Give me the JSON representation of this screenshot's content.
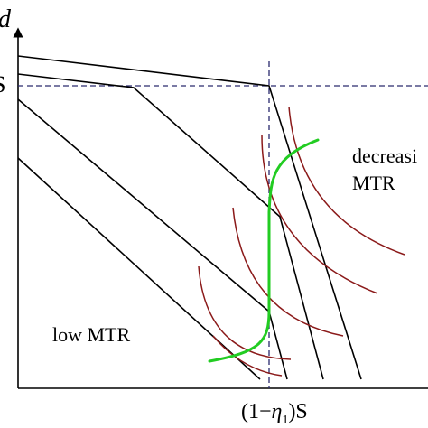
{
  "labels": {
    "y_axis_var": "d",
    "y_axis_tick": "S",
    "x_axis_tick_prefix": "(1−",
    "x_axis_tick_eta": "η",
    "x_axis_tick_sub": "1",
    "x_axis_tick_suffix": ")S",
    "region_right_line1": "decreasi",
    "region_right_line2": "MTR",
    "region_left": "low MTR"
  },
  "colors": {
    "axis": "#000000",
    "budget_lines": "#000000",
    "dashed_guides": "#2a2a6e",
    "indifference_curves": "#8b1a1a",
    "optimal_path": "#22cc22"
  }
}
